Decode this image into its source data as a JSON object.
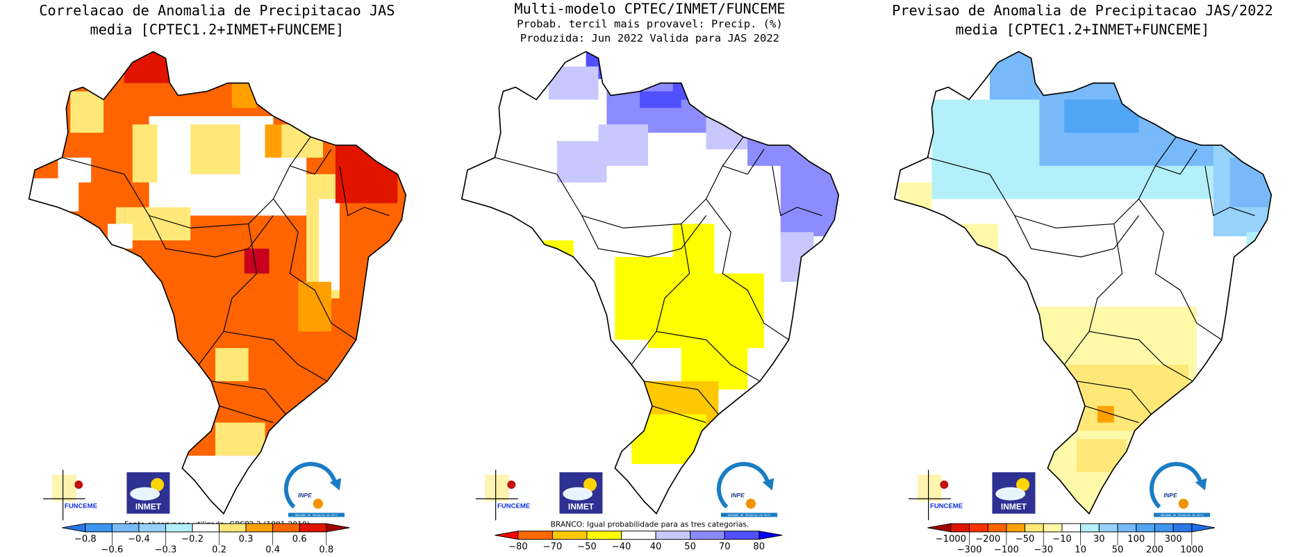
{
  "panels": [
    {
      "title": [
        "Correlacao de Anomalia de Precipitacao JAS",
        "media [CPTEC1.2+INMET+FUNCEME]"
      ],
      "caption": "Fonte observacao utilizada: GPCP2.2 (1981-2010)",
      "colorbar": {
        "labels": [
          "-0.8",
          "-0.6",
          "-0.4",
          "-0.3",
          "-0.2",
          "0.2",
          "0.3",
          "0.4",
          "0.6",
          "0.8"
        ],
        "arrow_low": "#2878e6",
        "bins": [
          "#3c96f0",
          "#78b9fa",
          "#96d2fa",
          "#b4f0fa",
          "#ffffff",
          "#ffe878",
          "#ffa000",
          "#ff6400",
          "#e11400"
        ],
        "arrow_high": "#a50000"
      }
    },
    {
      "title": [
        "Multi-modelo CPTEC/INMET/FUNCEME",
        "Probab. tercil mais provavel: Precip. (%)",
        "Produzida: Jun 2022  Valida para JAS 2022"
      ],
      "caption": "BRANCO: Igual probabilidade para as tres categorias.",
      "colorbar": {
        "labels": [
          "-80",
          "-70",
          "-50",
          "-40",
          "40",
          "50",
          "70",
          "80"
        ],
        "arrow_low": "#ff0000",
        "bins": [
          "#ff6a00",
          "#ffc800",
          "#ffff00",
          "#ffffff",
          "#c8c8ff",
          "#8c8cff",
          "#5050ff"
        ],
        "arrow_high": "#0000ff"
      }
    },
    {
      "title": [
        "Previsao de Anomalia de Precipitacao JAS/2022",
        "media [CPTEC1.2+INMET+FUNCEME]"
      ],
      "caption": "",
      "colorbar": {
        "labels": [
          "-1000",
          "-300",
          "-200",
          "-100",
          "-50",
          "-30",
          "-10",
          "10",
          "30",
          "50",
          "100",
          "200",
          "300",
          "1000"
        ],
        "arrow_low": "#a50000",
        "bins": [
          "#e11400",
          "#ff3200",
          "#ff6400",
          "#ffa000",
          "#ffe878",
          "#fffaaa",
          "#ffffff",
          "#b4f0fa",
          "#96d2fa",
          "#78b9fa",
          "#50a5f5",
          "#3c96f0",
          "#2878e6"
        ],
        "arrow_high": "#1e6ee6"
      }
    }
  ],
  "logos": {
    "funceme": "FUNCEME",
    "inmet": "INMET",
    "inpe": "INPE",
    "inpe_sub": "UNIDADE DE PESQUISA DO MCTI"
  }
}
